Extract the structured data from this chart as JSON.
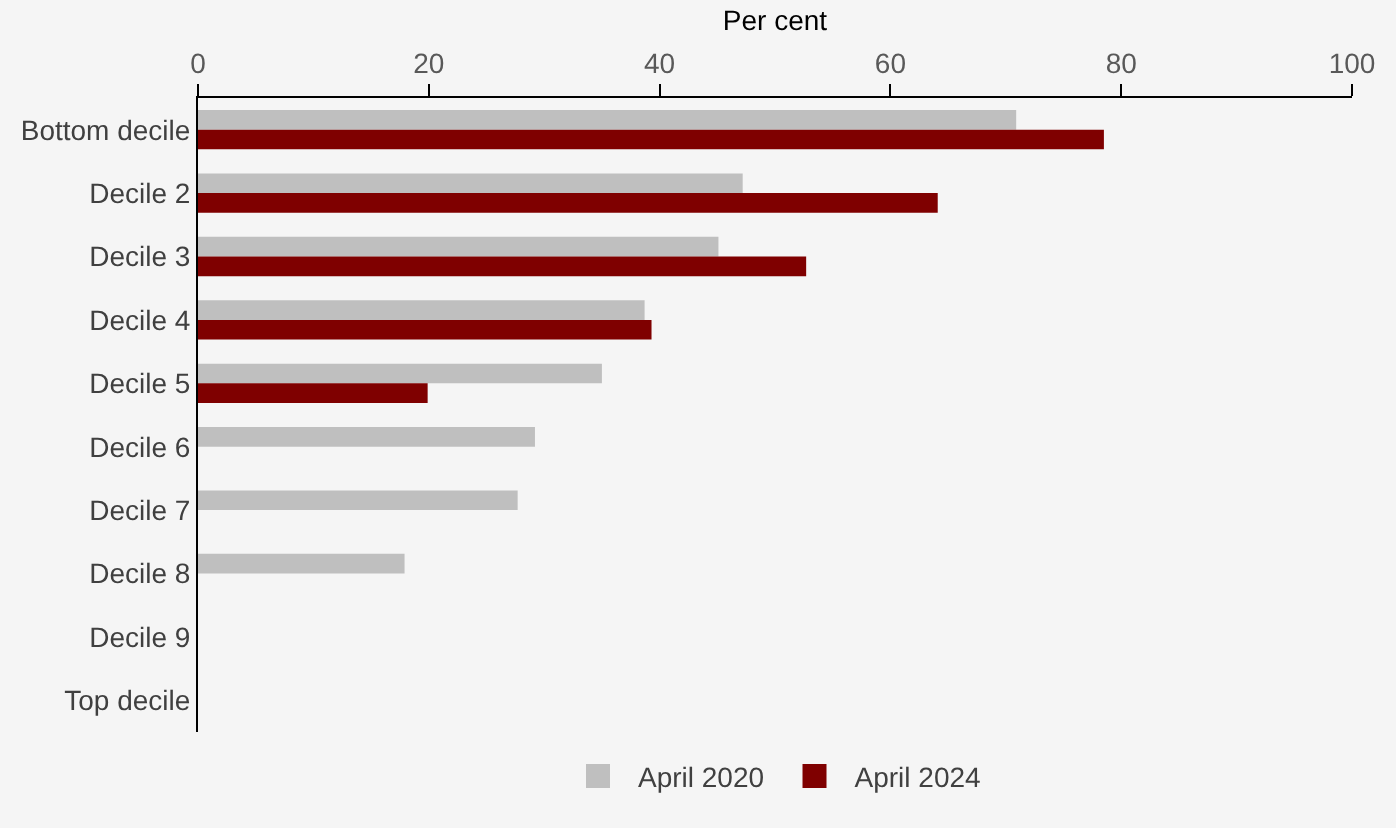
{
  "chart_data": {
    "type": "bar",
    "orientation": "horizontal",
    "xlabel": "Per cent",
    "categories": [
      "Bottom decile",
      "Decile 2",
      "Decile 3",
      "Decile 4",
      "Decile 5",
      "Decile 6",
      "Decile 7",
      "Decile 8",
      "Decile 9",
      "Top decile"
    ],
    "series": [
      {
        "name": "April 2020",
        "color": "#bfbfbf",
        "values": [
          70.9,
          47.2,
          45.1,
          38.7,
          35.0,
          29.2,
          27.7,
          17.9,
          0,
          0
        ]
      },
      {
        "name": "April 2024",
        "color": "#7f0000",
        "values": [
          78.5,
          64.1,
          52.7,
          39.3,
          19.9,
          0,
          0,
          0,
          0,
          0
        ]
      }
    ],
    "xlim": [
      0,
      100
    ],
    "xticks": [
      0,
      20,
      40,
      60,
      80,
      100
    ],
    "grid": false,
    "legend": "bottom"
  }
}
